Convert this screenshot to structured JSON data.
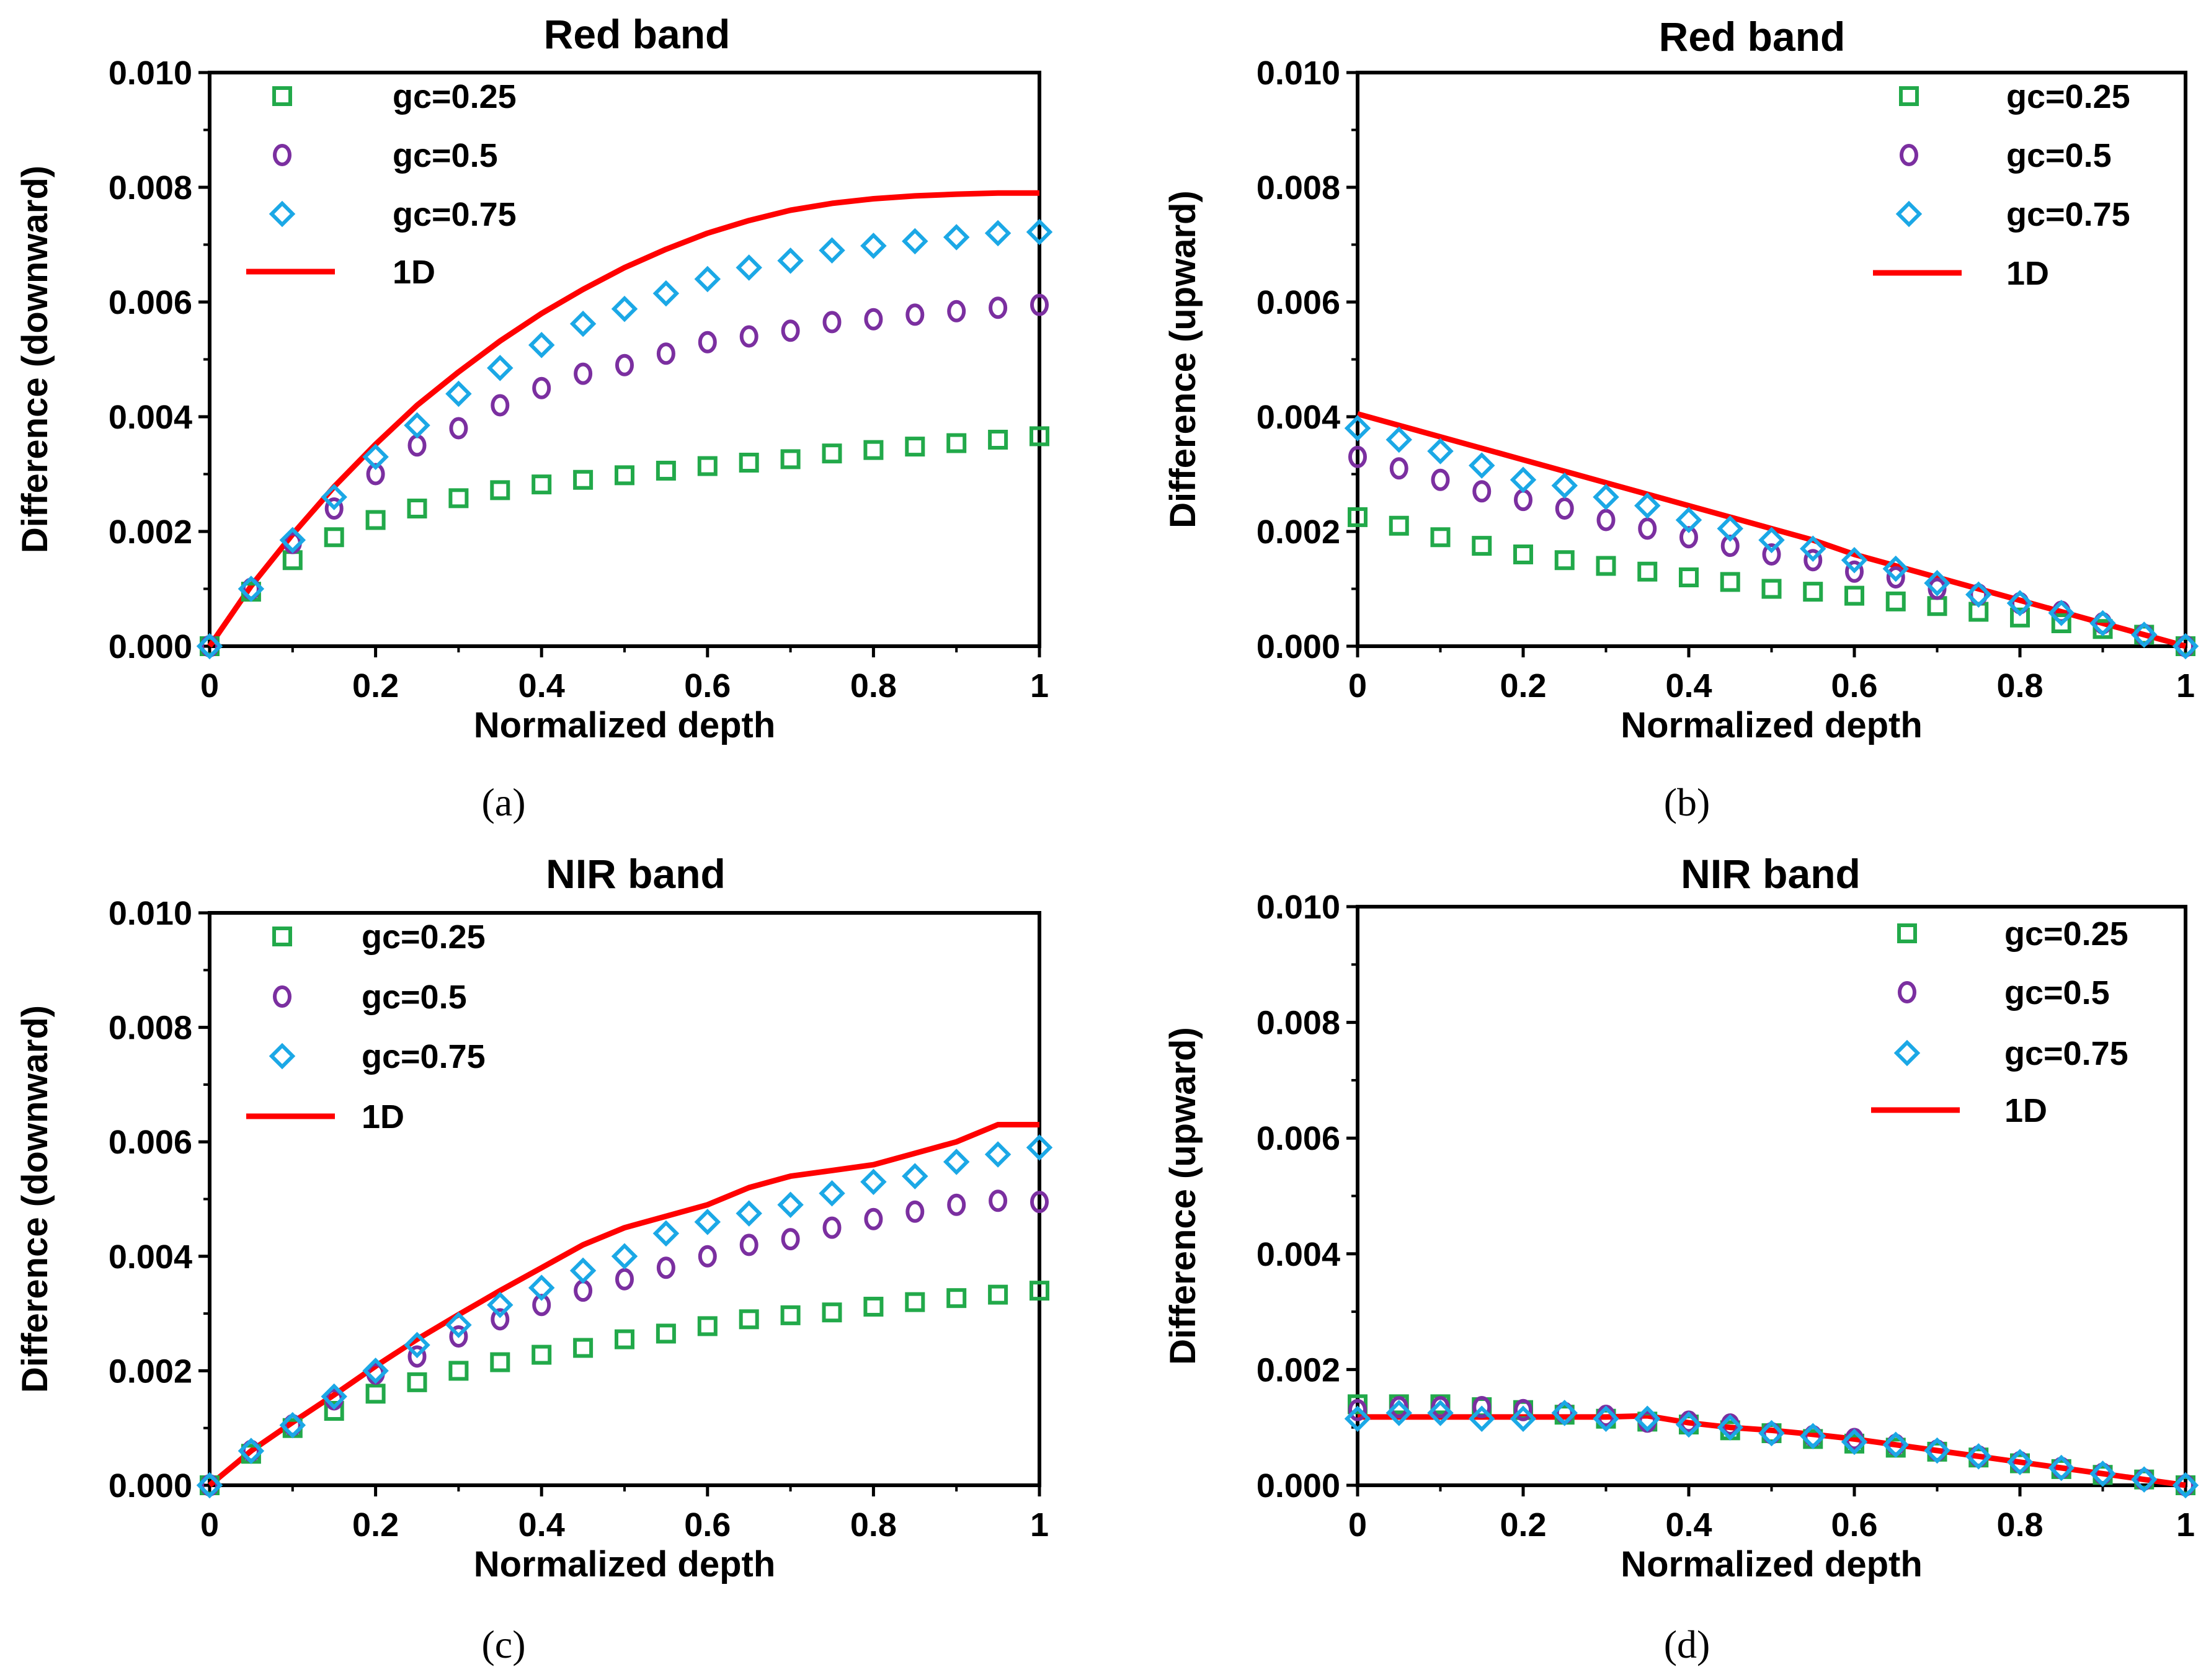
{
  "figure": {
    "background": "#ffffff"
  },
  "colors": {
    "gc025": "#22a94a",
    "gc05": "#7b2fa0",
    "gc075": "#1ba8e6",
    "line1d": "#ff0000",
    "axis": "#000000"
  },
  "chart_data": [
    {
      "id": "a",
      "type": "scatter",
      "title": "Red band",
      "caption": "(a)",
      "xlabel": "Normalized depth",
      "ylabel": "Difference (downward)",
      "xlim": [
        0,
        1
      ],
      "ylim": [
        0,
        0.01
      ],
      "xticks": [
        "0",
        "0.2",
        "0.4",
        "0.6",
        "0.8",
        "1"
      ],
      "yticks": [
        "0.000",
        "0.002",
        "0.004",
        "0.006",
        "0.008",
        "0.010"
      ],
      "legend_position": "top-left",
      "x": [
        0,
        0.05,
        0.1,
        0.15,
        0.2,
        0.25,
        0.3,
        0.35,
        0.4,
        0.45,
        0.5,
        0.55,
        0.6,
        0.65,
        0.7,
        0.75,
        0.8,
        0.85,
        0.9,
        0.95,
        1
      ],
      "series": [
        {
          "name": "gc=0.25",
          "marker": "square",
          "color": "#22a94a",
          "values": [
            0,
            0.00095,
            0.0015,
            0.0019,
            0.0022,
            0.0024,
            0.00258,
            0.00272,
            0.00282,
            0.0029,
            0.00298,
            0.00306,
            0.00314,
            0.0032,
            0.00326,
            0.00336,
            0.00342,
            0.00348,
            0.00354,
            0.0036,
            0.00366
          ]
        },
        {
          "name": "gc=0.5",
          "marker": "circle",
          "color": "#7b2fa0",
          "values": [
            0,
            0.001,
            0.0018,
            0.0024,
            0.003,
            0.0035,
            0.0038,
            0.0042,
            0.0045,
            0.00475,
            0.0049,
            0.0051,
            0.0053,
            0.0054,
            0.0055,
            0.00565,
            0.0057,
            0.00578,
            0.00584,
            0.0059,
            0.00595
          ]
        },
        {
          "name": "gc=0.75",
          "marker": "diamond",
          "color": "#1ba8e6",
          "values": [
            0,
            0.001,
            0.00185,
            0.0026,
            0.0033,
            0.00385,
            0.0044,
            0.00485,
            0.00525,
            0.00562,
            0.00588,
            0.00615,
            0.0064,
            0.0066,
            0.00672,
            0.0069,
            0.00698,
            0.00706,
            0.00713,
            0.0072,
            0.00722
          ]
        },
        {
          "name": "1D",
          "marker": "line",
          "color": "#ff0000",
          "values": [
            0,
            0.00105,
            0.00195,
            0.00278,
            0.00352,
            0.0042,
            0.00478,
            0.00532,
            0.0058,
            0.00622,
            0.0066,
            0.00692,
            0.0072,
            0.00742,
            0.0076,
            0.00772,
            0.0078,
            0.00785,
            0.00788,
            0.0079,
            0.0079
          ]
        }
      ]
    },
    {
      "id": "b",
      "type": "scatter",
      "title": "Red band",
      "caption": "(b)",
      "xlabel": "Normalized depth",
      "ylabel": "Difference (upward)",
      "xlim": [
        0,
        1
      ],
      "ylim": [
        0,
        0.01
      ],
      "xticks": [
        "0",
        "0.2",
        "0.4",
        "0.6",
        "0.8",
        "1"
      ],
      "yticks": [
        "0.000",
        "0.002",
        "0.004",
        "0.006",
        "0.008",
        "0.010"
      ],
      "legend_position": "top-right",
      "x": [
        0,
        0.05,
        0.1,
        0.15,
        0.2,
        0.25,
        0.3,
        0.35,
        0.4,
        0.45,
        0.5,
        0.55,
        0.6,
        0.65,
        0.7,
        0.75,
        0.8,
        0.85,
        0.9,
        0.95,
        1
      ],
      "series": [
        {
          "name": "gc=0.25",
          "marker": "square",
          "color": "#22a94a",
          "values": [
            0.00225,
            0.0021,
            0.0019,
            0.00175,
            0.0016,
            0.0015,
            0.0014,
            0.0013,
            0.0012,
            0.00112,
            0.001,
            0.00095,
            0.00088,
            0.00078,
            0.0007,
            0.0006,
            0.0005,
            0.0004,
            0.0003,
            0.0002,
            0
          ]
        },
        {
          "name": "gc=0.5",
          "marker": "circle",
          "color": "#7b2fa0",
          "values": [
            0.0033,
            0.0031,
            0.0029,
            0.0027,
            0.00255,
            0.0024,
            0.0022,
            0.00205,
            0.0019,
            0.00175,
            0.0016,
            0.0015,
            0.0013,
            0.0012,
            0.001,
            0.0009,
            0.00075,
            0.0006,
            0.0004,
            0.0002,
            0
          ]
        },
        {
          "name": "gc=0.75",
          "marker": "diamond",
          "color": "#1ba8e6",
          "values": [
            0.0038,
            0.0036,
            0.0034,
            0.00315,
            0.0029,
            0.0028,
            0.0026,
            0.00245,
            0.0022,
            0.00205,
            0.00185,
            0.0017,
            0.0015,
            0.00135,
            0.0011,
            0.0009,
            0.00075,
            0.00058,
            0.0004,
            0.0002,
            0
          ]
        },
        {
          "name": "1D",
          "marker": "line",
          "color": "#ff0000",
          "values": [
            0.00405,
            0.00385,
            0.00365,
            0.00345,
            0.00325,
            0.00305,
            0.00285,
            0.00265,
            0.00245,
            0.00225,
            0.00205,
            0.00185,
            0.0016,
            0.0014,
            0.0012,
            0.001,
            0.0008,
            0.0006,
            0.0004,
            0.0002,
            0
          ]
        }
      ]
    },
    {
      "id": "c",
      "type": "scatter",
      "title": "NIR band",
      "caption": "(c)",
      "xlabel": "Normalized depth",
      "ylabel": "Difference (downward)",
      "xlim": [
        0,
        1
      ],
      "ylim": [
        0,
        0.01
      ],
      "xticks": [
        "0",
        "0.2",
        "0.4",
        "0.6",
        "0.8",
        "1"
      ],
      "yticks": [
        "0.000",
        "0.002",
        "0.004",
        "0.006",
        "0.008",
        "0.010"
      ],
      "legend_position": "top-left",
      "x": [
        0,
        0.05,
        0.1,
        0.15,
        0.2,
        0.25,
        0.3,
        0.35,
        0.4,
        0.45,
        0.5,
        0.55,
        0.6,
        0.65,
        0.7,
        0.75,
        0.8,
        0.85,
        0.9,
        0.95,
        1
      ],
      "series": [
        {
          "name": "gc=0.25",
          "marker": "square",
          "color": "#22a94a",
          "values": [
            0,
            0.00055,
            0.001,
            0.0013,
            0.0016,
            0.0018,
            0.002,
            0.00215,
            0.00228,
            0.0024,
            0.00255,
            0.00265,
            0.00278,
            0.0029,
            0.00297,
            0.00302,
            0.00312,
            0.0032,
            0.00327,
            0.00333,
            0.0034
          ]
        },
        {
          "name": "gc=0.5",
          "marker": "circle",
          "color": "#7b2fa0",
          "values": [
            0,
            0.0006,
            0.00105,
            0.0015,
            0.00195,
            0.00225,
            0.0026,
            0.0029,
            0.00315,
            0.0034,
            0.0036,
            0.0038,
            0.004,
            0.0042,
            0.0043,
            0.0045,
            0.00465,
            0.00478,
            0.0049,
            0.00497,
            0.00495
          ]
        },
        {
          "name": "gc=0.75",
          "marker": "diamond",
          "color": "#1ba8e6",
          "values": [
            0,
            0.0006,
            0.00105,
            0.00155,
            0.002,
            0.00245,
            0.0028,
            0.00315,
            0.00345,
            0.00375,
            0.004,
            0.0044,
            0.0046,
            0.00475,
            0.0049,
            0.0051,
            0.0053,
            0.0054,
            0.00565,
            0.00578,
            0.0059
          ]
        },
        {
          "name": "1D",
          "marker": "line",
          "color": "#ff0000",
          "values": [
            0,
            0.0006,
            0.0011,
            0.00158,
            0.00208,
            0.00255,
            0.00298,
            0.0034,
            0.0038,
            0.0042,
            0.0045,
            0.0047,
            0.0049,
            0.0052,
            0.0054,
            0.0055,
            0.0056,
            0.0058,
            0.006,
            0.0063,
            0.0063
          ]
        }
      ]
    },
    {
      "id": "d",
      "type": "scatter",
      "title": "NIR band",
      "caption": "(d)",
      "xlabel": "Normalized depth",
      "ylabel": "Difference (upward)",
      "xlim": [
        0,
        1
      ],
      "ylim": [
        0,
        0.01
      ],
      "xticks": [
        "0",
        "0.2",
        "0.4",
        "0.6",
        "0.8",
        "1"
      ],
      "yticks": [
        "0.000",
        "0.002",
        "0.004",
        "0.006",
        "0.008",
        "0.010"
      ],
      "legend_position": "top-right",
      "x": [
        0,
        0.05,
        0.1,
        0.15,
        0.2,
        0.25,
        0.3,
        0.35,
        0.4,
        0.45,
        0.5,
        0.55,
        0.6,
        0.65,
        0.7,
        0.75,
        0.8,
        0.85,
        0.9,
        0.95,
        1
      ],
      "series": [
        {
          "name": "gc=0.25",
          "marker": "square",
          "color": "#22a94a",
          "values": [
            0.0014,
            0.0014,
            0.0014,
            0.00135,
            0.0013,
            0.00122,
            0.00115,
            0.0011,
            0.00105,
            0.00095,
            0.0009,
            0.0008,
            0.00072,
            0.00065,
            0.00058,
            0.00048,
            0.00038,
            0.00028,
            0.00018,
            0.0001,
            0
          ]
        },
        {
          "name": "gc=0.5",
          "marker": "circle",
          "color": "#7b2fa0",
          "values": [
            0.0013,
            0.00135,
            0.00135,
            0.00135,
            0.0013,
            0.00125,
            0.0012,
            0.0011,
            0.0011,
            0.00105,
            0.0009,
            0.00085,
            0.0008,
            0.0007,
            0.0006,
            0.0005,
            0.0004,
            0.0003,
            0.0002,
            0.0001,
            0
          ]
        },
        {
          "name": "gc=0.75",
          "marker": "diamond",
          "color": "#1ba8e6",
          "values": [
            0.00115,
            0.00125,
            0.00125,
            0.00115,
            0.00115,
            0.00125,
            0.00115,
            0.00115,
            0.00105,
            0.001,
            0.0009,
            0.00085,
            0.00075,
            0.0007,
            0.0006,
            0.0005,
            0.0004,
            0.0003,
            0.0002,
            0.0001,
            0
          ]
        },
        {
          "name": "1D",
          "marker": "line",
          "color": "#ff0000",
          "values": [
            0.00118,
            0.00118,
            0.00118,
            0.00118,
            0.00118,
            0.00118,
            0.00118,
            0.0012,
            0.00108,
            0.001,
            0.00095,
            0.00088,
            0.0008,
            0.0007,
            0.0006,
            0.0005,
            0.0004,
            0.0003,
            0.0002,
            0.0001,
            0
          ]
        }
      ]
    }
  ]
}
